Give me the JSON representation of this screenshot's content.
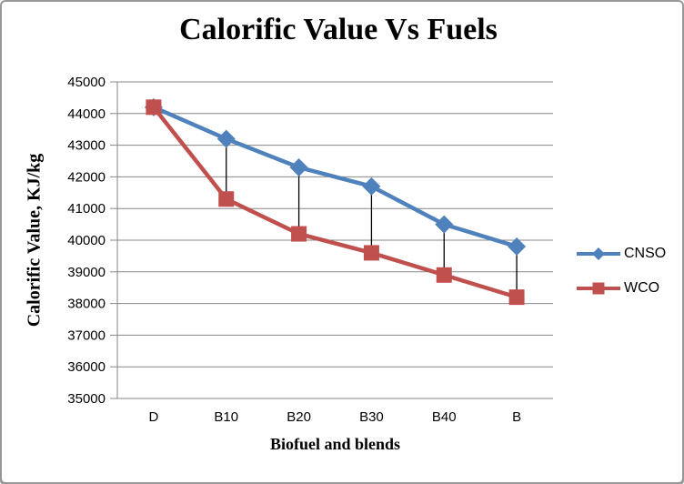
{
  "frame": {
    "background": "#FFFFFF",
    "border_color": "#979797"
  },
  "chart_data": {
    "type": "line",
    "title": "Calorific Value Vs Fuels",
    "xlabel": "Biofuel and blends",
    "ylabel": "Calorific Value, KJ/kg",
    "categories": [
      "D",
      "B10",
      "B20",
      "B30",
      "B40",
      "B"
    ],
    "series": [
      {
        "name": "CNSO",
        "color": "#4F81BD",
        "marker": "diamond",
        "values": [
          44200,
          43200,
          42300,
          41700,
          40500,
          39800
        ]
      },
      {
        "name": "WCO",
        "color": "#C0504D",
        "marker": "square",
        "values": [
          44200,
          41300,
          40200,
          39600,
          38900,
          38200
        ]
      }
    ],
    "ylim": [
      35000,
      45000
    ],
    "y_ticks": [
      45000,
      44000,
      43000,
      42000,
      41000,
      40000,
      39000,
      38000,
      37000,
      36000,
      35000
    ],
    "grid": true,
    "gridline_color": "#878787",
    "high_low_lines": true,
    "high_low_color": "#000000",
    "legend_position": "right"
  }
}
